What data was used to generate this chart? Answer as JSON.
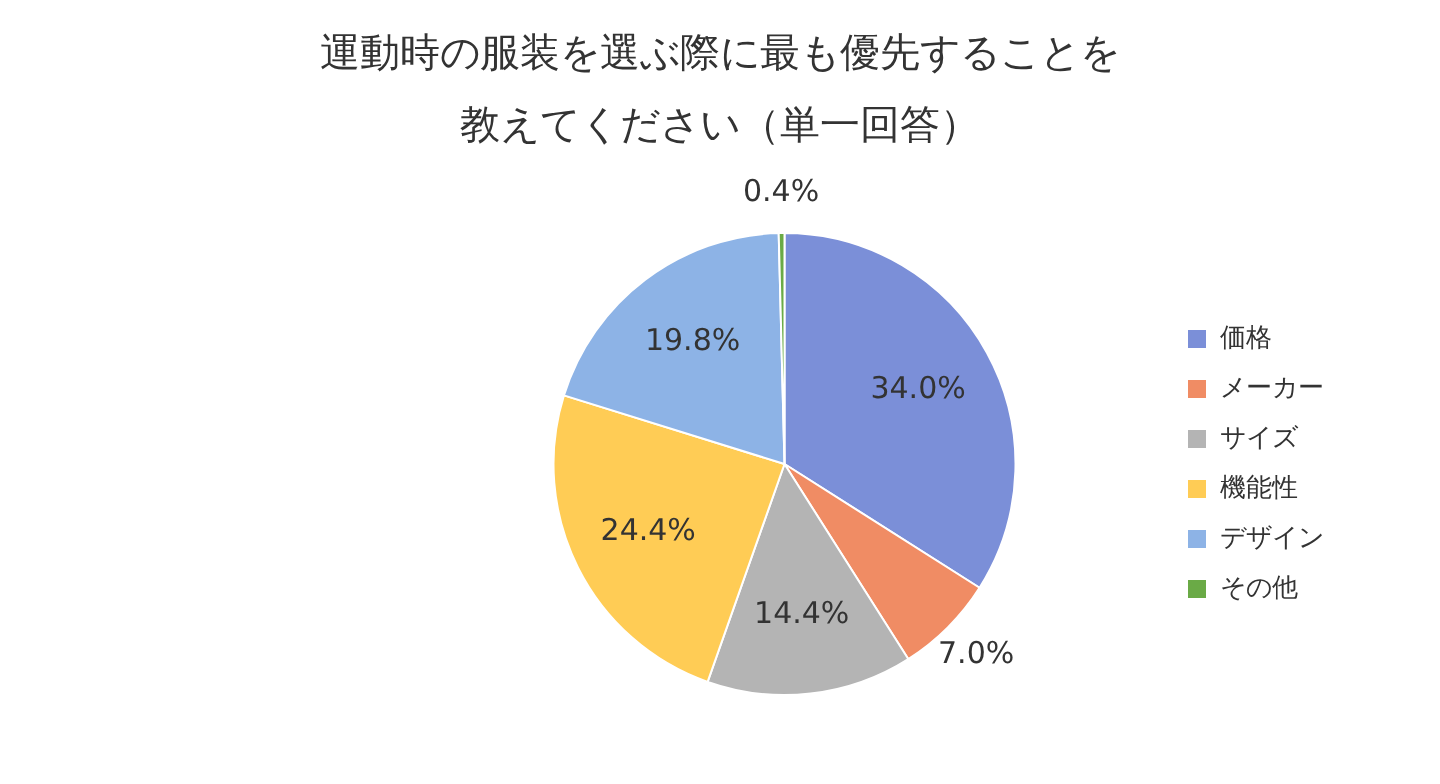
{
  "chart_data": {
    "type": "pie",
    "title": "運動時の服装を選ぶ際に最も優先することを教えてください（単一回答）",
    "categories": [
      "価格",
      "メーカー",
      "サイズ",
      "機能性",
      "デザイン",
      "その他"
    ],
    "values": [
      34.0,
      7.0,
      14.4,
      24.4,
      19.8,
      0.4
    ],
    "colors": [
      "#7b8fd8",
      "#f08c64",
      "#b4b4b4",
      "#ffcc55",
      "#8db3e6",
      "#6aaa46"
    ],
    "value_labels": [
      "34.0%",
      "7.0%",
      "14.4%",
      "24.4%",
      "19.8%",
      "0.4%"
    ],
    "legend": "right"
  }
}
